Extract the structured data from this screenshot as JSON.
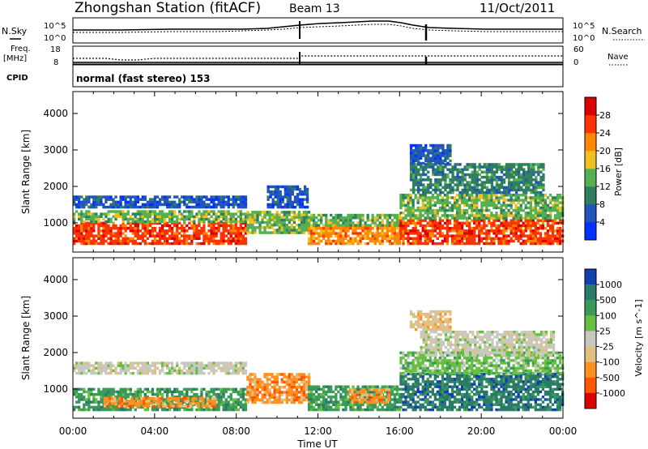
{
  "header": {
    "station_title": "Zhongshan Station (fitACF)",
    "beam": "Beam 13",
    "date": "11/Oct/2011"
  },
  "top_panels": {
    "nsky_label": "N.Sky",
    "nsky_ticks": [
      "10^5",
      "10^0"
    ],
    "nsearch_label": "N.Search",
    "nsearch_ticks": [
      "10^5",
      "10^0"
    ],
    "freq_label": "Freq.",
    "freq_unit": "[MHz]",
    "freq_ticks": [
      "18",
      "8"
    ],
    "nave_label": "Nave",
    "nave_ticks": [
      "60",
      "0"
    ],
    "cpid_label": "CPID",
    "cpid_text": "normal (fast stereo) 153"
  },
  "chart_data": [
    {
      "type": "heatmap",
      "panel": "power",
      "ylabel": "Slant Range [km]",
      "yticks": [
        "1000",
        "2000",
        "3000",
        "4000"
      ],
      "ylim": [
        200,
        4600
      ],
      "xlim_hours": [
        0,
        24
      ],
      "colorbar_label": "Power [dB]",
      "colorbar_ticks": [
        "4",
        "8",
        "12",
        "16",
        "20",
        "24",
        "28"
      ],
      "colors": [
        "#0033ff",
        "#2255bb",
        "#2f7f5f",
        "#55b050",
        "#f0c020",
        "#ff8800",
        "#ff3300",
        "#dd0000"
      ],
      "bands": [
        {
          "x": [
            0,
            8.5
          ],
          "y": [
            400,
            1000
          ],
          "level": 6
        },
        {
          "x": [
            0,
            8.5
          ],
          "y": [
            1000,
            1300
          ],
          "level": 3
        },
        {
          "x": [
            0,
            8.5
          ],
          "y": [
            1400,
            1700
          ],
          "level": 1
        },
        {
          "x": [
            8.5,
            11.5
          ],
          "y": [
            700,
            1300
          ],
          "level": 3
        },
        {
          "x": [
            9.5,
            11.5
          ],
          "y": [
            1400,
            2000
          ],
          "level": 1
        },
        {
          "x": [
            11.5,
            16
          ],
          "y": [
            400,
            900
          ],
          "level": 5
        },
        {
          "x": [
            11.5,
            16
          ],
          "y": [
            900,
            1200
          ],
          "level": 3
        },
        {
          "x": [
            16,
            24
          ],
          "y": [
            400,
            1100
          ],
          "level": 6
        },
        {
          "x": [
            16,
            24
          ],
          "y": [
            1100,
            1800
          ],
          "level": 3
        },
        {
          "x": [
            16.5,
            23
          ],
          "y": [
            1800,
            2600
          ],
          "level": 2
        },
        {
          "x": [
            16.5,
            18.5
          ],
          "y": [
            2600,
            3100
          ],
          "level": 1
        }
      ]
    },
    {
      "type": "heatmap",
      "panel": "velocity",
      "ylabel": "Slant Range [km]",
      "yticks": [
        "1000",
        "2000",
        "3000",
        "4000"
      ],
      "ylim": [
        200,
        4600
      ],
      "xlim_hours": [
        0,
        24
      ],
      "xticks": [
        "00:00",
        "04:00",
        "08:00",
        "12:00",
        "16:00",
        "20:00",
        "00:00"
      ],
      "xlabel": "Time UT",
      "colorbar_label": "Velocity [m s^-1]",
      "colorbar_ticks": [
        "1000",
        "500",
        "100",
        "25",
        "-25",
        "-100",
        "-500",
        "-1000"
      ],
      "colors": [
        "#1040b0",
        "#2a7a6a",
        "#3a9a5a",
        "#66c040",
        "#c8c8c0",
        "#e0c080",
        "#ff9020",
        "#ff5500",
        "#dd0000"
      ],
      "bands": [
        {
          "x": [
            0,
            8.5
          ],
          "y": [
            400,
            1000
          ],
          "level": 2
        },
        {
          "x": [
            1.5,
            7
          ],
          "y": [
            500,
            750
          ],
          "level": 6
        },
        {
          "x": [
            0,
            8.5
          ],
          "y": [
            1400,
            1700
          ],
          "level": 4
        },
        {
          "x": [
            8.5,
            11.5
          ],
          "y": [
            600,
            1400
          ],
          "level": 6
        },
        {
          "x": [
            11.5,
            16
          ],
          "y": [
            400,
            1100
          ],
          "level": 2
        },
        {
          "x": [
            13.5,
            15.5
          ],
          "y": [
            600,
            1000
          ],
          "level": 6
        },
        {
          "x": [
            16,
            24
          ],
          "y": [
            400,
            1400
          ],
          "level": 1
        },
        {
          "x": [
            16,
            24
          ],
          "y": [
            1400,
            2000
          ],
          "level": 3
        },
        {
          "x": [
            17,
            23.5
          ],
          "y": [
            1900,
            2600
          ],
          "level": 4
        },
        {
          "x": [
            16.5,
            18.5
          ],
          "y": [
            2600,
            3100
          ],
          "level": 5
        }
      ]
    }
  ]
}
